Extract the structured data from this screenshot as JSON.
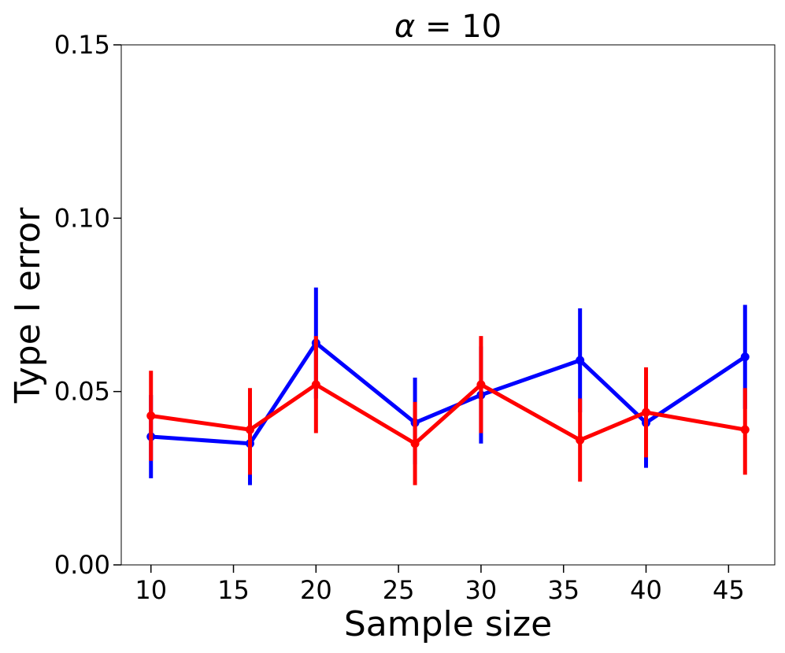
{
  "chart_data": {
    "type": "line",
    "title_symbol": "α",
    "title_rest": " = 10",
    "xlabel": "Sample size",
    "ylabel": "Type I error",
    "xlim": [
      8.2,
      47.8
    ],
    "ylim": [
      0.0,
      0.15
    ],
    "xticks": [
      10,
      15,
      20,
      25,
      30,
      35,
      40,
      45
    ],
    "yticks": [
      0.0,
      0.05,
      0.1,
      0.15
    ],
    "ytick_labels": [
      "0.00",
      "0.05",
      "0.10",
      "0.15"
    ],
    "xtick_labels": [
      "10",
      "15",
      "20",
      "25",
      "30",
      "35",
      "40",
      "45"
    ],
    "grid": false,
    "x": [
      10,
      16,
      20,
      26,
      30,
      36,
      40,
      46
    ],
    "series": [
      {
        "name": "blue",
        "color": "#0000ff",
        "values": [
          0.037,
          0.035,
          0.064,
          0.041,
          0.049,
          0.059,
          0.041,
          0.06
        ],
        "err_low": [
          0.025,
          0.023,
          0.048,
          0.029,
          0.035,
          0.044,
          0.028,
          0.045
        ],
        "err_high": [
          0.049,
          0.047,
          0.08,
          0.054,
          0.063,
          0.074,
          0.054,
          0.075
        ]
      },
      {
        "name": "red",
        "color": "#ff0000",
        "values": [
          0.043,
          0.039,
          0.052,
          0.035,
          0.052,
          0.036,
          0.044,
          0.039
        ],
        "err_low": [
          0.03,
          0.026,
          0.038,
          0.023,
          0.038,
          0.024,
          0.031,
          0.026
        ],
        "err_high": [
          0.056,
          0.051,
          0.066,
          0.047,
          0.066,
          0.048,
          0.057,
          0.051
        ]
      }
    ]
  }
}
